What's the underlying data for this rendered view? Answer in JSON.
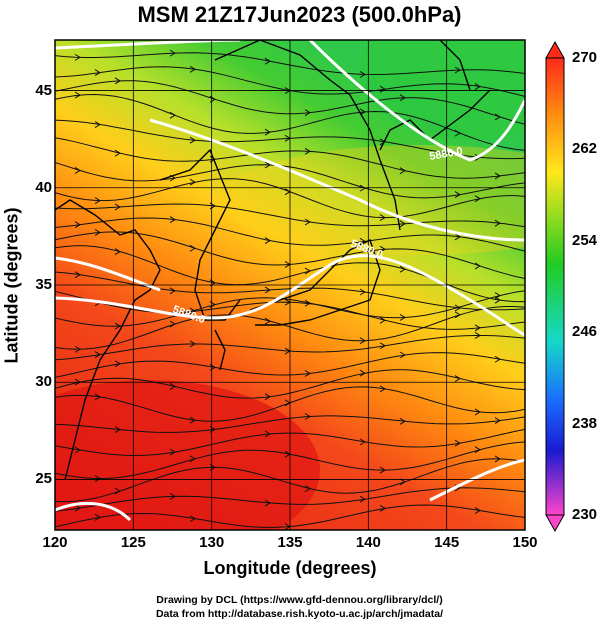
{
  "title": "MSM 21Z17Jun2023 (500.0hPa)",
  "axes": {
    "xlabel": "Longitude (degrees)",
    "ylabel": "Latitude  (degrees)",
    "x_ticks": [
      "120",
      "125",
      "130",
      "135",
      "140",
      "145",
      "150"
    ],
    "y_ticks": [
      "25",
      "30",
      "35",
      "40",
      "45"
    ],
    "xlim": [
      120,
      150
    ],
    "ylim": [
      22.4,
      47.6
    ]
  },
  "colorbar": {
    "ticks": [
      "270",
      "262",
      "254",
      "246",
      "238",
      "230"
    ],
    "range": [
      230,
      270
    ]
  },
  "contours": {
    "label": "5880.0"
  },
  "credits": {
    "line1": "Drawing by DCL (https://www.gfd-dennou.org/library/dcl/)",
    "line2": "Data from http://database.rish.kyoto-u.ac.jp/arch/jmadata/"
  },
  "chart_data": {
    "type": "heatmap",
    "title": "MSM 21Z17Jun2023 (500.0hPa)",
    "xlabel": "Longitude (degrees)",
    "ylabel": "Latitude  (degrees)",
    "xlim": [
      120,
      150
    ],
    "ylim": [
      22.4,
      47.6
    ],
    "x_ticks": [
      120,
      125,
      130,
      135,
      140,
      145,
      150
    ],
    "y_ticks": [
      25,
      30,
      35,
      40,
      45
    ],
    "colorbar_range": [
      230,
      270
    ],
    "colorbar_ticks": [
      270,
      262,
      254,
      246,
      238,
      230
    ],
    "grid": true,
    "overlays": [
      "streamlines",
      "geopotential height contours",
      "coastlines"
    ],
    "contour_labels": [
      "5880.0"
    ]
  },
  "colors": {
    "warm": "#e8241a",
    "orange": "#ff8a10",
    "yellow": "#ffd21a",
    "green": "#33cc2a",
    "contour": "#ffffff"
  }
}
